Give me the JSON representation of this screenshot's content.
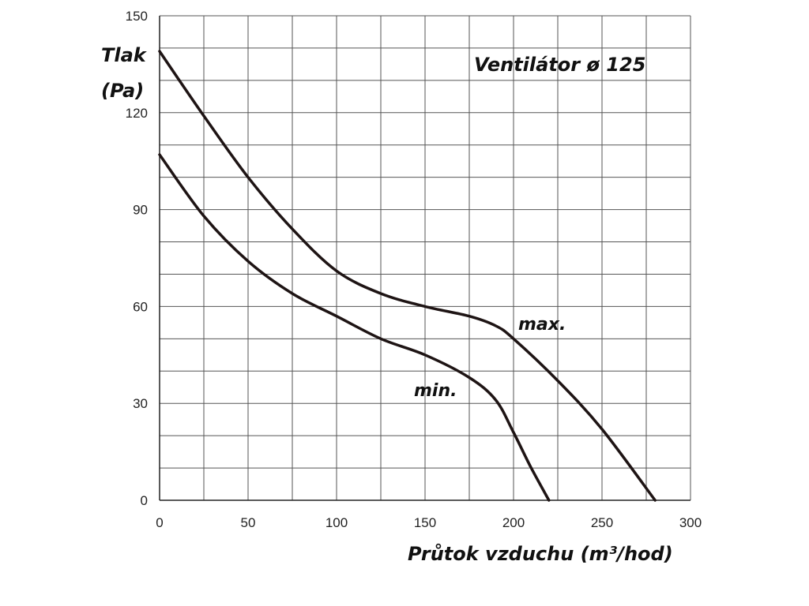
{
  "chart_data": {
    "type": "line",
    "title": "Ventilátor ø 125",
    "xlabel": "Průtok vzduchu (m³/hod)",
    "ylabel": [
      "Tlak",
      "(Pa)"
    ],
    "xlim": [
      0,
      300
    ],
    "ylim": [
      0,
      150
    ],
    "x_ticks": [
      0,
      50,
      100,
      150,
      200,
      250,
      300
    ],
    "y_ticks": [
      0,
      30,
      60,
      90,
      120,
      150
    ],
    "x_minor_step": 25,
    "y_minor_step": 10,
    "grid": true,
    "legend": "none",
    "series": [
      {
        "name": "max.",
        "x": [
          0,
          25,
          50,
          75,
          100,
          125,
          150,
          175,
          190,
          200,
          225,
          250,
          280
        ],
        "y": [
          139,
          119,
          100,
          84,
          71,
          64,
          60,
          57,
          54,
          50,
          37,
          22,
          0
        ]
      },
      {
        "name": "min.",
        "x": [
          0,
          25,
          50,
          75,
          100,
          125,
          150,
          175,
          190,
          200,
          210,
          220
        ],
        "y": [
          107,
          88,
          74,
          64,
          57,
          50,
          45,
          38,
          31,
          21,
          10,
          0
        ]
      }
    ]
  }
}
